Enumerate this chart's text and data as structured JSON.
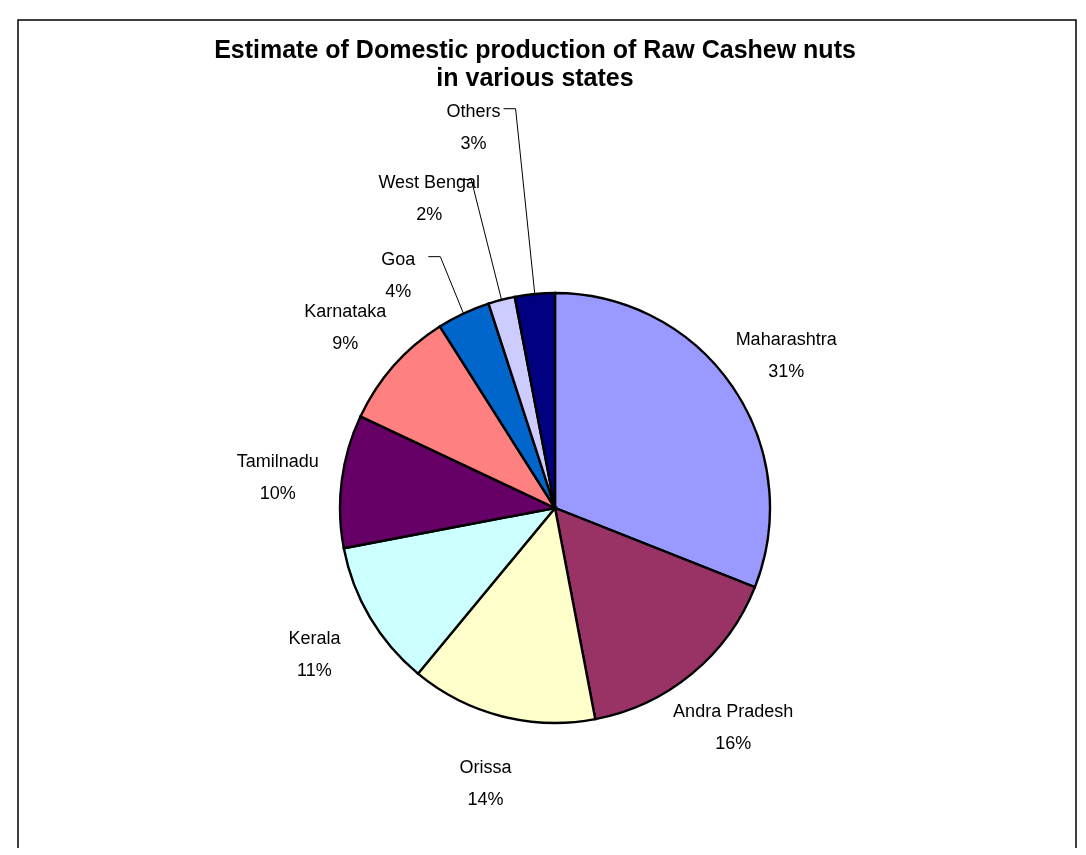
{
  "chart_data": {
    "type": "pie",
    "title": "Estimate of Domestic production of Raw Cashew nuts\nin various states",
    "categories": [
      "Maharashtra",
      "Andra Pradesh",
      "Orissa",
      "Kerala",
      "Tamilnadu",
      "Karnataka",
      "Goa",
      "West Bengal",
      "Others"
    ],
    "values": [
      31,
      16,
      14,
      11,
      10,
      9,
      4,
      2,
      3
    ],
    "colors": [
      "#9999ff",
      "#993366",
      "#ffffcc",
      "#ccffff",
      "#660066",
      "#ff8080",
      "#0066cc",
      "#ccccff",
      "#000080"
    ],
    "value_labels": [
      "31%",
      "16%",
      "14%",
      "11%",
      "10%",
      "9%",
      "4%",
      "2%",
      "3%"
    ]
  }
}
